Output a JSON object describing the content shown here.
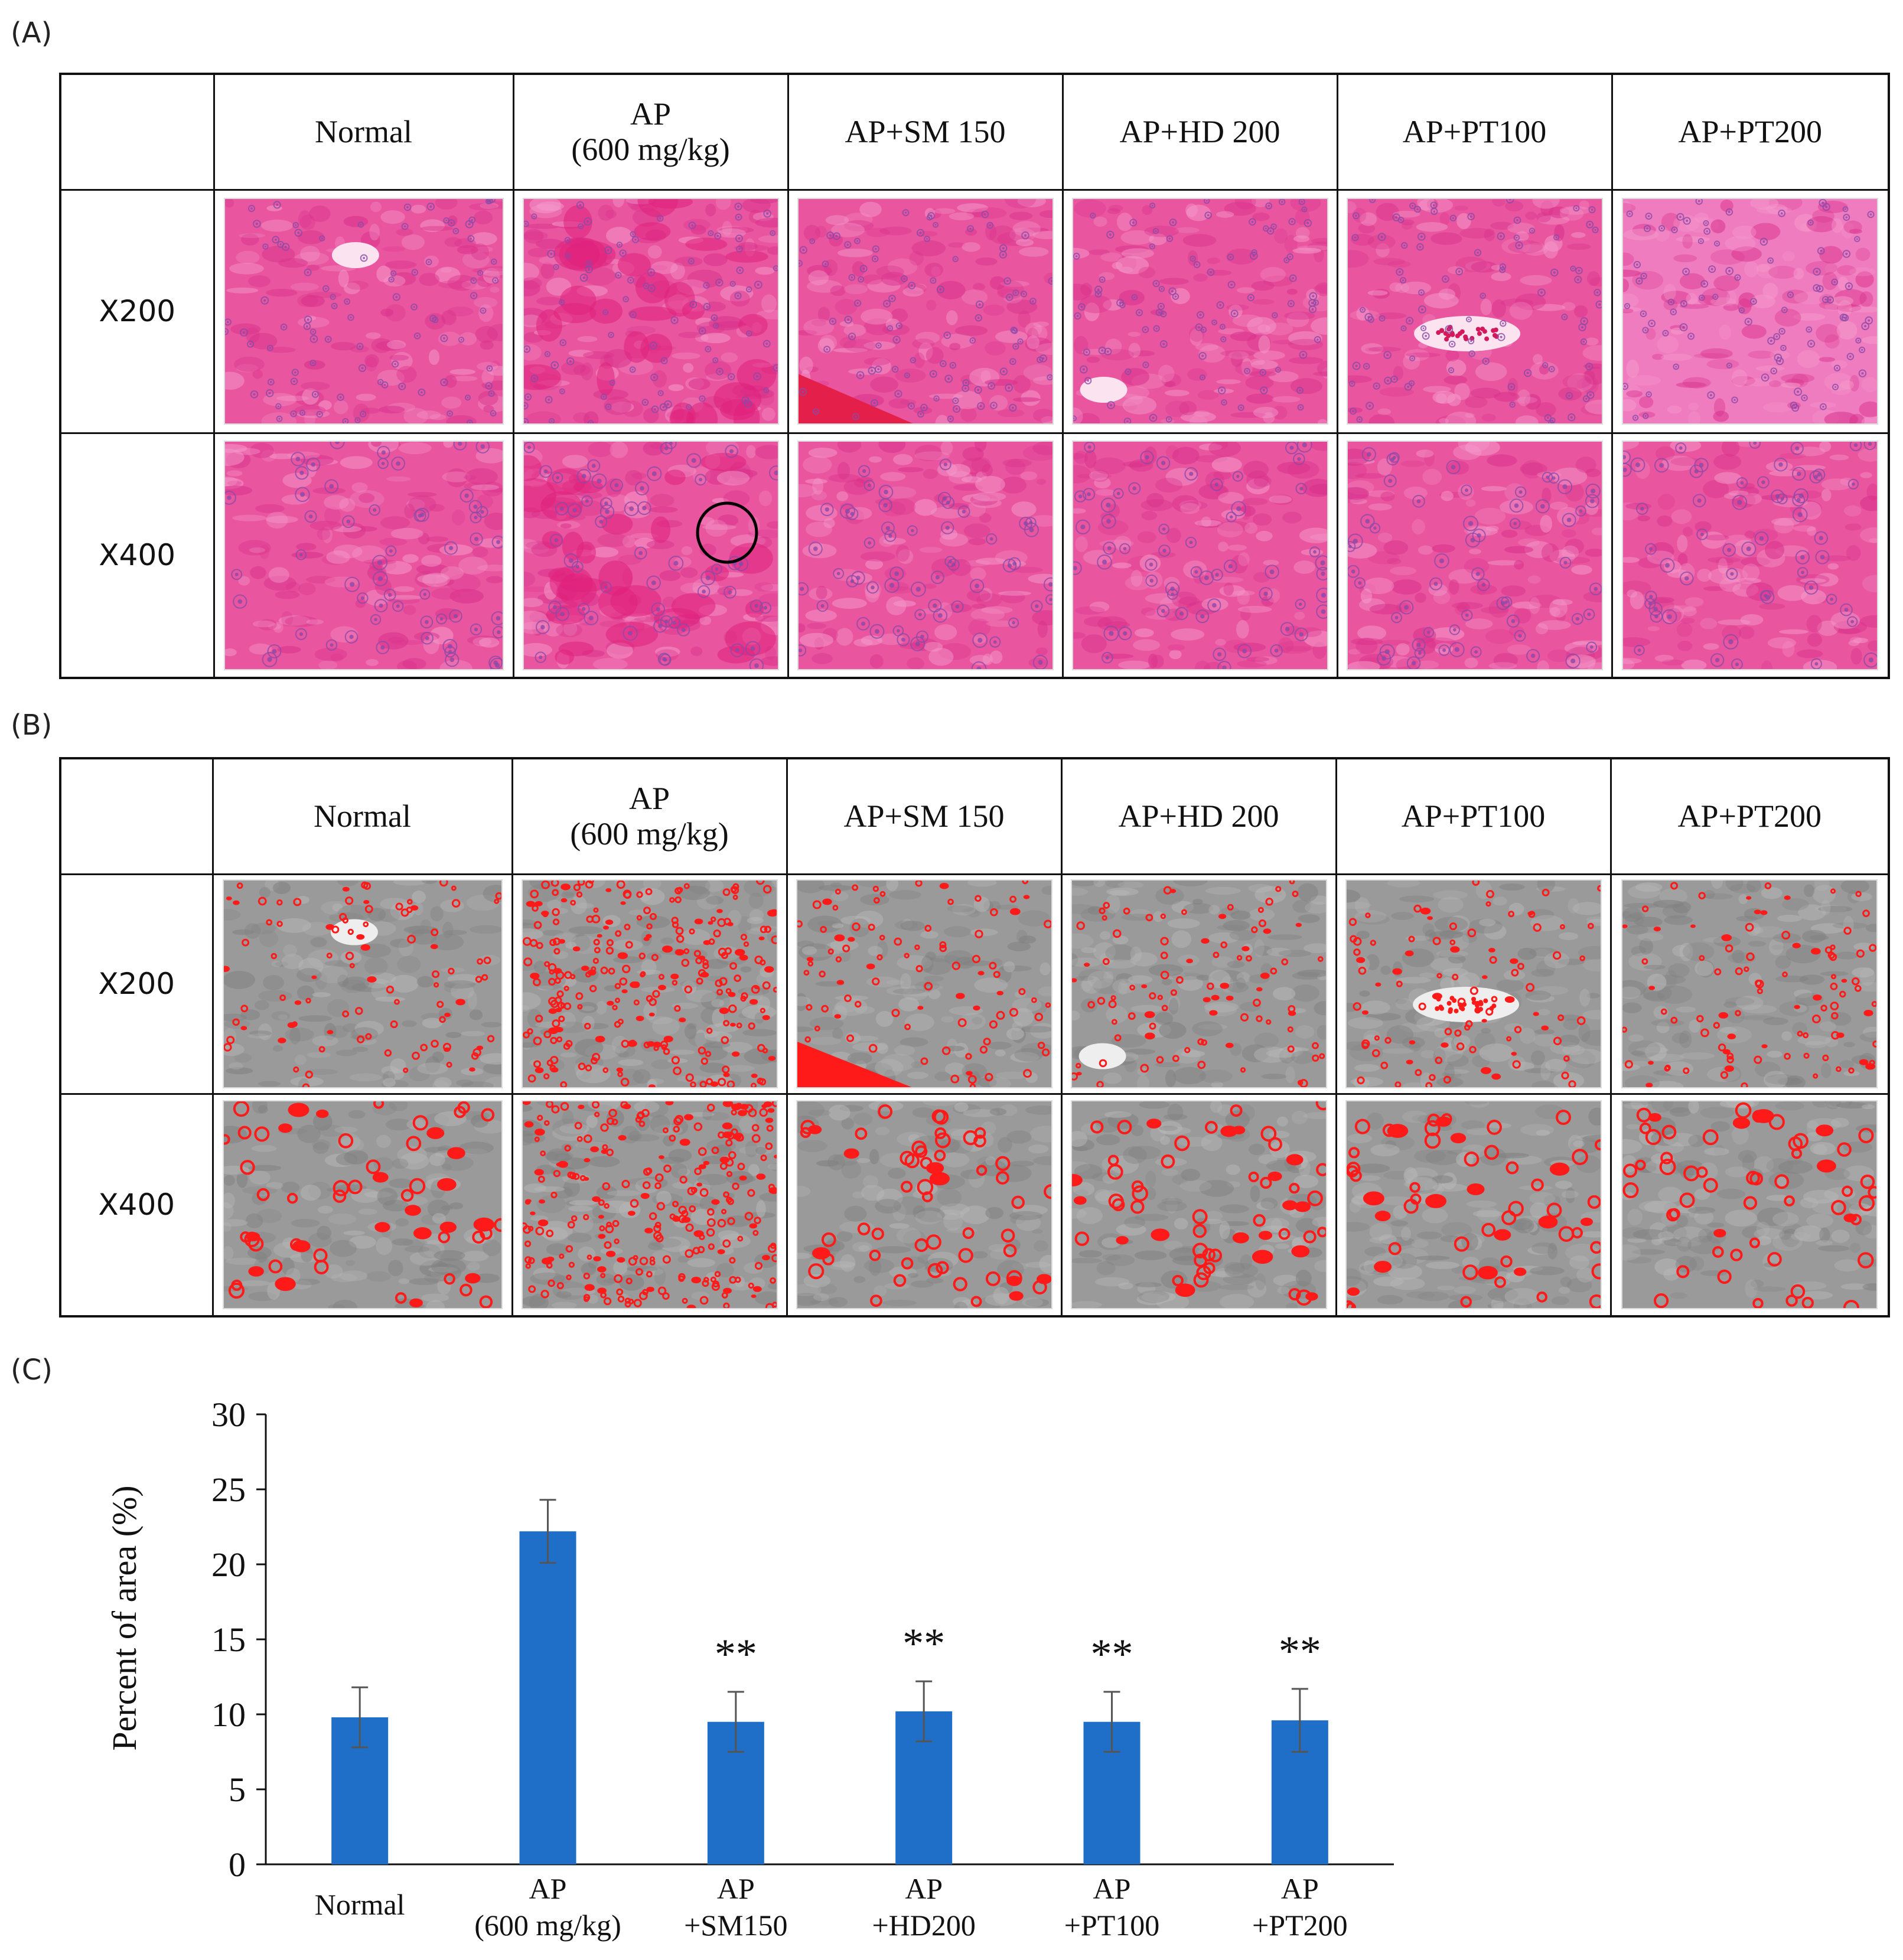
{
  "panels": {
    "a": "(A)",
    "b": "(B)",
    "c": "(C)"
  },
  "table": {
    "headers": [
      [
        "Normal"
      ],
      [
        "AP",
        "(600 mg/kg)"
      ],
      [
        "AP+SM 150"
      ],
      [
        "AP+HD  200"
      ],
      [
        "AP+PT100"
      ],
      [
        "AP+PT200"
      ]
    ],
    "rows": [
      "X200",
      "X400"
    ]
  },
  "colors": {
    "he_stain": "#e9559f",
    "he_stain_dark": "#d9308a",
    "nucleus": "#8a4aa8",
    "mask_gray": "#9a9a9a",
    "mask_red": "#ff1a1a",
    "bar": "#1f6fc8"
  },
  "chart_data": {
    "type": "bar",
    "ylabel": "Percent of area (%)",
    "ylim": [
      0,
      30
    ],
    "yticks": [
      0,
      5,
      10,
      15,
      20,
      25,
      30
    ],
    "categories": [
      [
        "Normal"
      ],
      [
        "AP",
        "(600 mg/kg)"
      ],
      [
        "AP",
        "+SM150"
      ],
      [
        "AP",
        "+HD200"
      ],
      [
        "AP",
        "+PT100"
      ],
      [
        "AP",
        "+PT200"
      ]
    ],
    "values": [
      9.8,
      22.2,
      9.5,
      10.2,
      9.5,
      9.6
    ],
    "errors": [
      2.0,
      2.1,
      2.0,
      2.0,
      2.0,
      2.1
    ],
    "annotations": [
      "",
      "",
      "**",
      "**",
      "**",
      "**"
    ]
  }
}
